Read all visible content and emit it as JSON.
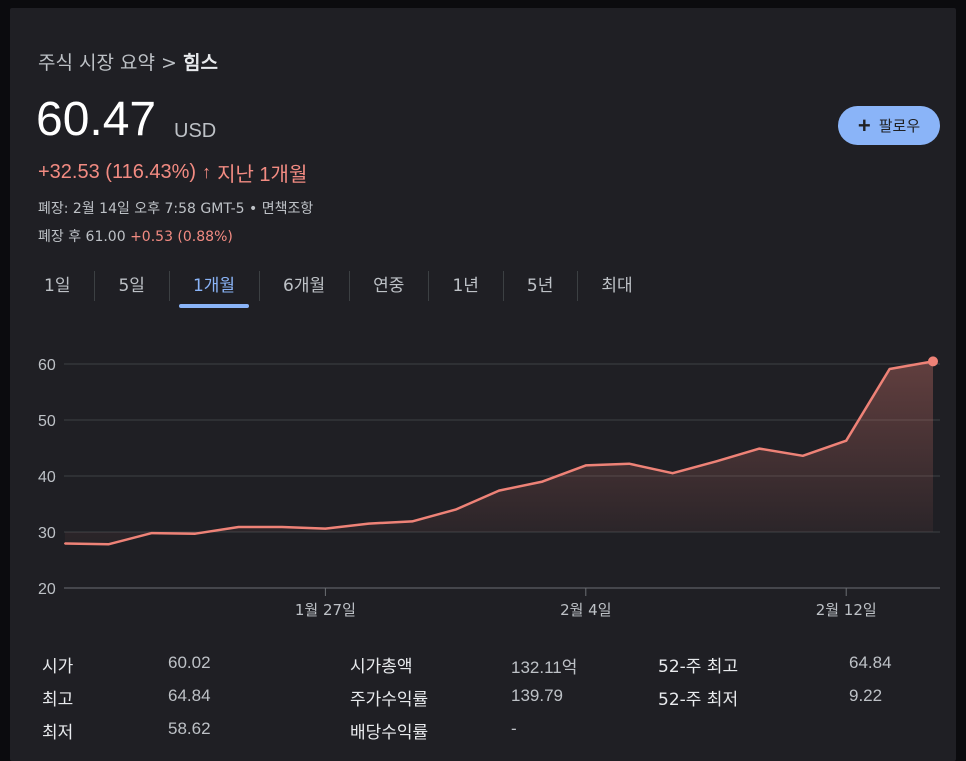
{
  "breadcrumb": {
    "parent": "주식 시장 요약",
    "separator": ">",
    "current": "힘스"
  },
  "quote": {
    "price": "60.47",
    "currency": "USD",
    "change": "+32.53 (116.43%)",
    "change_arrow": "🡑",
    "change_period": "지난 1개월",
    "meta": "폐장: 2월 14일 오후 7:58 GMT-5 • 면책조항",
    "after_hours_label": "폐장 후 61.00",
    "after_hours_change": "+0.53 (0.88%)"
  },
  "follow": {
    "icon": "plus-icon",
    "label": "팔로우"
  },
  "tabs": [
    {
      "label": "1일"
    },
    {
      "label": "5일"
    },
    {
      "label": "1개월",
      "active": true
    },
    {
      "label": "6개월"
    },
    {
      "label": "연중"
    },
    {
      "label": "1년"
    },
    {
      "label": "5년"
    },
    {
      "label": "최대"
    }
  ],
  "colors": {
    "line": "#ee8277",
    "accent": "#8ab4f8",
    "down_up": "#f28b82"
  },
  "chart_data": {
    "type": "area",
    "x_tick_labels": [
      "1월 27일",
      "2월 4일",
      "2월 12일"
    ],
    "x_tick_index": [
      6,
      12,
      18
    ],
    "y_ticks": [
      20,
      30,
      40,
      50,
      60
    ],
    "ylim": [
      20,
      60
    ],
    "grid": true,
    "values": [
      27.94,
      27.8,
      29.8,
      29.7,
      30.9,
      30.9,
      30.6,
      31.5,
      31.9,
      34.0,
      37.4,
      39.0,
      41.9,
      42.2,
      40.5,
      42.6,
      44.9,
      43.6,
      46.3,
      59.1,
      60.47
    ]
  },
  "stats": {
    "col1": [
      {
        "label": "시가",
        "value": "60.02"
      },
      {
        "label": "최고",
        "value": "64.84"
      },
      {
        "label": "최저",
        "value": "58.62"
      }
    ],
    "col2": [
      {
        "label": "시가총액",
        "value": "132.11억"
      },
      {
        "label": "주가수익률",
        "value": "139.79"
      },
      {
        "label": "배당수익률",
        "value": "-"
      }
    ],
    "col3": [
      {
        "label": "52-주 최고",
        "value": "64.84"
      },
      {
        "label": "52-주 최저",
        "value": "9.22"
      }
    ]
  }
}
